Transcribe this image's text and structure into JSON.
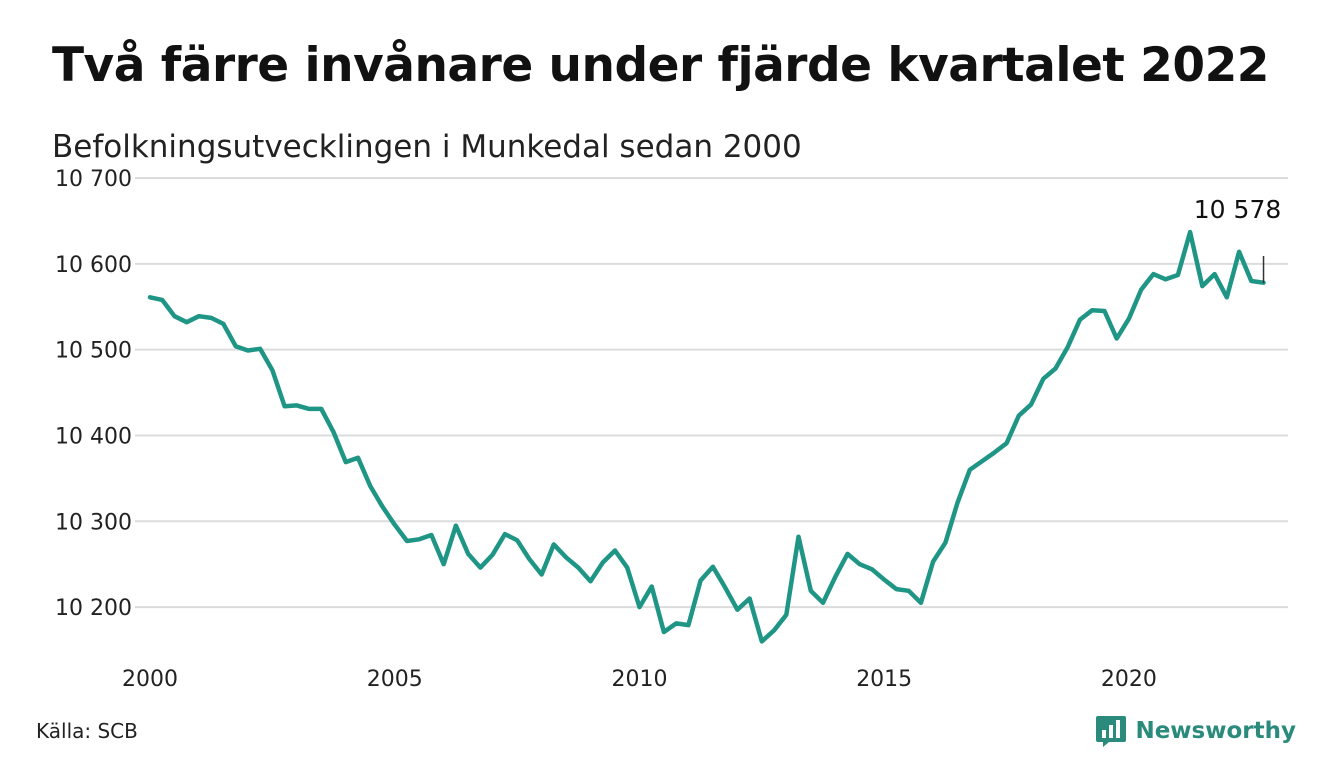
{
  "title": "Två färre invånare under fjärde kvartalet 2022",
  "subtitle": "Befolkningsutvecklingen i Munkedal sedan 2000",
  "source": "Källa: SCB",
  "brand": {
    "name": "Newsworthy",
    "icon": "bar-chart-speech-bubble-icon",
    "color": "#2a8a7c"
  },
  "colors": {
    "line": "#1f9585",
    "grid": "#dcdcdc"
  },
  "chart_data": {
    "type": "line",
    "title": "Två färre invånare under fjärde kvartalet 2022",
    "subtitle": "Befolkningsutvecklingen i Munkedal sedan 2000",
    "xlabel": "",
    "ylabel": "",
    "xlim": [
      2000,
      2023.25
    ],
    "ylim": [
      10150,
      10700
    ],
    "x_ticks": [
      2000,
      2005,
      2010,
      2015,
      2020
    ],
    "x_tick_labels": [
      "2000",
      "2005",
      "2010",
      "2015",
      "2020"
    ],
    "y_ticks": [
      10200,
      10300,
      10400,
      10500,
      10600,
      10700
    ],
    "y_tick_labels": [
      "10 200",
      "10 300",
      "10 400",
      "10 500",
      "10 600",
      "10 700"
    ],
    "grid": "horizontal",
    "legend": "none",
    "annotation": {
      "x": 2022.75,
      "text": "10 578"
    },
    "series": [
      {
        "color": "#1f9585",
        "x": [
          2000,
          2000.25,
          2000.5,
          2000.75,
          2001,
          2001.25,
          2001.5,
          2001.75,
          2002,
          2002.25,
          2002.5,
          2002.75,
          2003,
          2003.25,
          2003.5,
          2003.75,
          2004,
          2004.25,
          2004.5,
          2004.75,
          2005,
          2005.25,
          2005.5,
          2005.75,
          2006,
          2006.25,
          2006.5,
          2006.75,
          2007,
          2007.25,
          2007.5,
          2007.75,
          2008,
          2008.25,
          2008.5,
          2008.75,
          2009,
          2009.25,
          2009.5,
          2009.75,
          2010,
          2010.25,
          2010.5,
          2010.75,
          2011,
          2011.25,
          2011.5,
          2011.75,
          2012,
          2012.25,
          2012.5,
          2012.75,
          2013,
          2013.25,
          2013.5,
          2013.75,
          2014,
          2014.25,
          2014.5,
          2014.75,
          2015,
          2015.25,
          2015.5,
          2015.75,
          2016,
          2016.25,
          2016.5,
          2016.75,
          2017,
          2017.25,
          2017.5,
          2017.75,
          2018,
          2018.25,
          2018.5,
          2018.75,
          2019,
          2019.25,
          2019.5,
          2019.75,
          2020,
          2020.25,
          2020.5,
          2020.75,
          2021,
          2021.25,
          2021.5,
          2021.75,
          2022,
          2022.25,
          2022.5,
          2022.75
        ],
        "values": [
          10561,
          10558,
          10539,
          10532,
          10539,
          10537,
          10530,
          10504,
          10499,
          10501,
          10476,
          10434,
          10435,
          10431,
          10431,
          10404,
          10369,
          10374,
          10341,
          10317,
          10296,
          10277,
          10279,
          10284,
          10250,
          10295,
          10262,
          10246,
          10261,
          10285,
          10278,
          10256,
          10238,
          10273,
          10258,
          10246,
          10230,
          10252,
          10266,
          10246,
          10200,
          10224,
          10171,
          10181,
          10179,
          10231,
          10247,
          10223,
          10197,
          10210,
          10160,
          10173,
          10191,
          10282,
          10219,
          10205,
          10235,
          10262,
          10250,
          10244,
          10232,
          10221,
          10219,
          10205,
          10253,
          10275,
          10322,
          10360,
          10370,
          10380,
          10391,
          10423,
          10436,
          10466,
          10478,
          10503,
          10535,
          10546,
          10545,
          10513,
          10536,
          10570,
          10588,
          10582,
          10587,
          10637,
          10574,
          10588,
          10561,
          10614,
          10580,
          10578
        ]
      }
    ]
  }
}
